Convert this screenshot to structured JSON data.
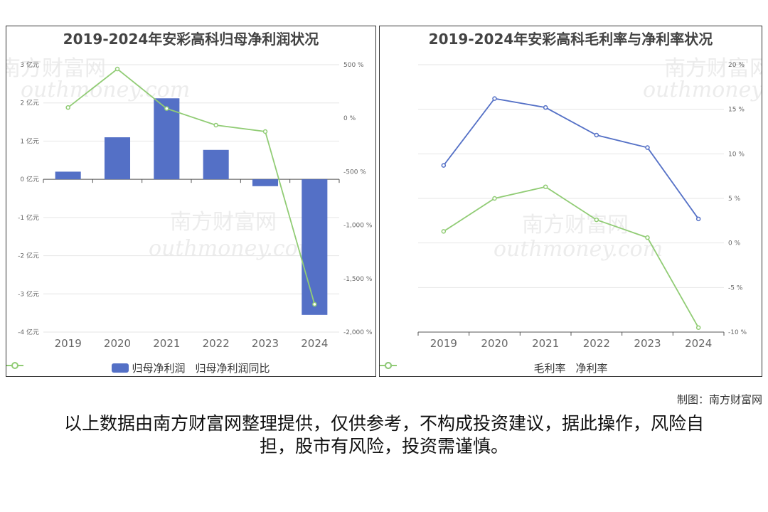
{
  "watermark": {
    "cn": "南方财富网",
    "en": "outhmoney.com"
  },
  "chart_data": [
    {
      "type": "bar+line",
      "title": "2019-2024年安彩高科归母净利润状况",
      "categories": [
        "2019",
        "2020",
        "2021",
        "2022",
        "2023",
        "2024"
      ],
      "series": [
        {
          "name": "归母净利润",
          "type": "bar",
          "axis": "left",
          "unit": "亿元",
          "values": [
            0.2,
            1.1,
            2.12,
            0.77,
            -0.18,
            -3.55
          ],
          "color": "#5470c6"
        },
        {
          "name": "归母净利润同比",
          "type": "line",
          "axis": "right",
          "unit": "%",
          "values": [
            100,
            460,
            90,
            -65,
            -125,
            -1740
          ],
          "color": "#91cc75"
        }
      ],
      "y_left": {
        "min": -4,
        "max": 3,
        "step": 1,
        "tick_labels": [
          "-4 亿元",
          "-3 亿元",
          "-2 亿元",
          "-1 亿元",
          "0 亿元",
          "1 亿元",
          "2 亿元",
          "3 亿元"
        ]
      },
      "y_right": {
        "min": -2000,
        "max": 500,
        "step": 500,
        "tick_labels": [
          "-2,000 %",
          "-1,500 %",
          "-1,000 %",
          "-500 %",
          "0 %",
          "500 %"
        ]
      },
      "legend": "bottom"
    },
    {
      "type": "line",
      "title": "2019-2024年安彩高科毛利率与净利率状况",
      "categories": [
        "2019",
        "2020",
        "2021",
        "2022",
        "2023",
        "2024"
      ],
      "series": [
        {
          "name": "毛利率",
          "values": [
            8.7,
            16.2,
            15.2,
            12.1,
            10.7,
            2.7
          ],
          "color": "#5470c6"
        },
        {
          "name": "净利率",
          "values": [
            1.3,
            5.0,
            6.3,
            2.6,
            0.6,
            -9.5
          ],
          "color": "#91cc75"
        }
      ],
      "y_right": {
        "min": -10,
        "max": 20,
        "step": 5,
        "tick_labels": [
          "-10 %",
          "-5 %",
          "0 %",
          "5 %",
          "10 %",
          "15 %",
          "20 %"
        ]
      },
      "legend": "bottom"
    }
  ],
  "source_note": "制图：南方财富网",
  "disclaimer": "以上数据由南方财富网整理提供，仅供参考，不构成投资建议，据此操作，风险自担，股市有风险，投资需谨慎。"
}
